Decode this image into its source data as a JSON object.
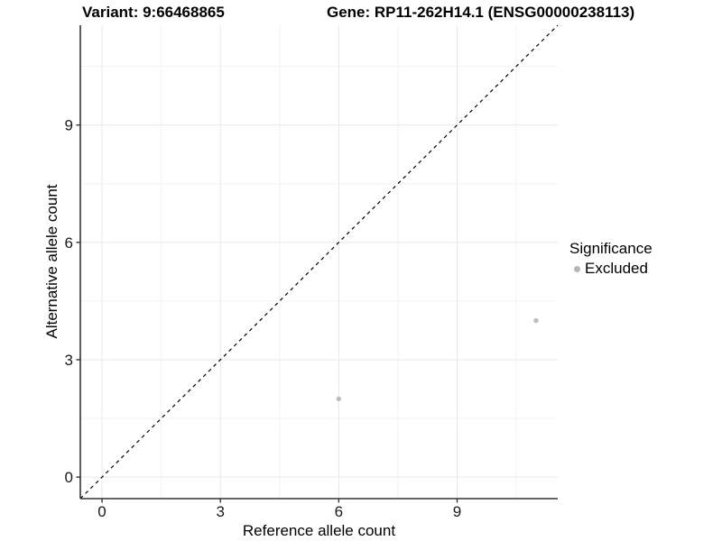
{
  "chart_data": {
    "type": "scatter",
    "titles": {
      "left": "Variant: 9:66468865",
      "right": "Gene: RP11-262H14.1 (ENSG00000238113)"
    },
    "xlabel": "Reference allele count",
    "ylabel": "Alternative allele count",
    "xlim": [
      -0.55,
      11.55
    ],
    "ylim": [
      -0.55,
      11.55
    ],
    "x_major_ticks": [
      0,
      3,
      6,
      9
    ],
    "y_major_ticks": [
      0,
      3,
      6,
      9
    ],
    "x_minor_ticks": [
      1.5,
      4.5,
      7.5,
      10.5
    ],
    "y_minor_ticks": [
      1.5,
      4.5,
      7.5,
      10.5
    ],
    "grid": true,
    "identity_line": {
      "slope": 1,
      "intercept": 0,
      "style": "dashed",
      "color": "#000000"
    },
    "series": [
      {
        "name": "Excluded",
        "color": "#bdbdbd",
        "points": [
          {
            "x": 6,
            "y": 2
          },
          {
            "x": 11,
            "y": 4
          }
        ]
      }
    ],
    "legend": {
      "title": "Significance",
      "position": "right",
      "items": [
        {
          "label": "Excluded",
          "color": "#b5b5b5"
        }
      ]
    },
    "colors": {
      "axis": "#333333",
      "grid_major": "#e9e9e9",
      "grid_minor": "#f4f4f4",
      "tick_text": "#1a1a1a",
      "background": "#ffffff"
    }
  }
}
